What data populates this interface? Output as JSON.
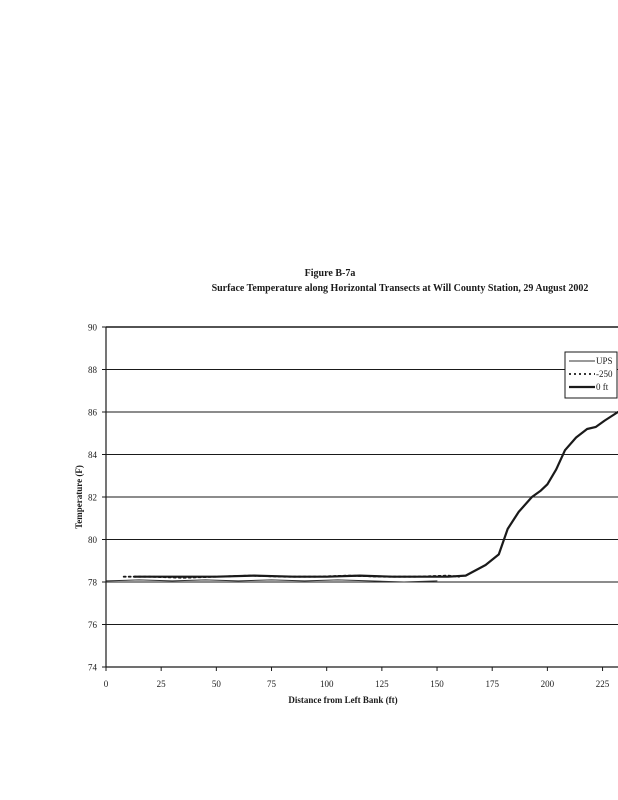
{
  "figure": {
    "label": "Figure B-7a",
    "title": "Surface Temperature along Horizontal Transects at Will County Station, 29 August 2002"
  },
  "chart_data": {
    "type": "line",
    "title": "Surface Temperature along Horizontal Transects at Will County Station, 29 August 2002",
    "xlabel": "Distance from Left Bank (ft)",
    "ylabel": "Temperature (F)",
    "xlim": [
      0,
      232
    ],
    "ylim": [
      74,
      90
    ],
    "xticks": [
      0,
      25,
      50,
      75,
      100,
      125,
      150,
      175,
      200,
      225
    ],
    "yticks": [
      74,
      76,
      78,
      80,
      82,
      84,
      86,
      88,
      90
    ],
    "grid": "horizontal",
    "legend_position": "right",
    "series": [
      {
        "name": "UPS",
        "style": "thin-solid",
        "color": "#333333",
        "x": [
          0,
          15,
          30,
          45,
          60,
          75,
          90,
          105,
          120,
          135,
          150
        ],
        "y": [
          78.05,
          78.1,
          78.05,
          78.1,
          78.05,
          78.1,
          78.05,
          78.1,
          78.05,
          78.0,
          78.05
        ]
      },
      {
        "name": "-250",
        "style": "dotted",
        "color": "#1a1a1a",
        "x": [
          8,
          20,
          35,
          50,
          65,
          80,
          95,
          110,
          125,
          140,
          155,
          160
        ],
        "y": [
          78.25,
          78.25,
          78.2,
          78.25,
          78.3,
          78.25,
          78.25,
          78.3,
          78.25,
          78.25,
          78.3,
          78.25
        ]
      },
      {
        "name": "0 ft",
        "style": "thick-solid",
        "color": "#1a1a1a",
        "x": [
          13,
          30,
          50,
          67,
          85,
          100,
          115,
          130,
          145,
          155,
          163,
          172,
          178,
          182,
          187,
          193,
          197,
          200,
          204,
          208,
          213,
          218,
          222,
          226,
          232
        ],
        "y": [
          78.25,
          78.25,
          78.25,
          78.3,
          78.25,
          78.25,
          78.3,
          78.25,
          78.25,
          78.25,
          78.3,
          78.8,
          79.3,
          80.5,
          81.3,
          82.0,
          82.3,
          82.6,
          83.3,
          84.2,
          84.8,
          85.2,
          85.3,
          85.6,
          86.0
        ]
      }
    ]
  }
}
